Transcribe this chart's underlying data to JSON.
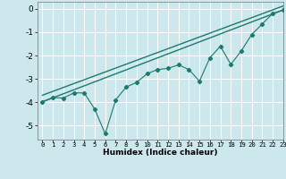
{
  "xlabel": "Humidex (Indice chaleur)",
  "ylabel": "",
  "bg_color": "#cce8ec",
  "grid_color": "#ffffff",
  "line_color": "#1a7a6e",
  "xlim": [
    -0.5,
    23
  ],
  "ylim": [
    -5.6,
    0.3
  ],
  "yticks": [
    0,
    -1,
    -2,
    -3,
    -4,
    -5
  ],
  "xticks": [
    0,
    1,
    2,
    3,
    4,
    5,
    6,
    7,
    8,
    9,
    10,
    11,
    12,
    13,
    14,
    15,
    16,
    17,
    18,
    19,
    20,
    21,
    22,
    23
  ],
  "line1_x": [
    0,
    1,
    2,
    3,
    4,
    5,
    6,
    7,
    8,
    9,
    10,
    11,
    12,
    13,
    14,
    15,
    16,
    17,
    18,
    19,
    20,
    21,
    22,
    23
  ],
  "line1_y": [
    -3.98,
    -3.8,
    -3.82,
    -3.6,
    -3.6,
    -4.3,
    -5.35,
    -3.9,
    -3.35,
    -3.15,
    -2.78,
    -2.6,
    -2.55,
    -2.4,
    -2.6,
    -3.1,
    -2.1,
    -1.6,
    -2.38,
    -1.8,
    -1.1,
    -0.65,
    -0.2,
    -0.05
  ],
  "line2_x": [
    0,
    23
  ],
  "line2_y": [
    -3.98,
    -0.05
  ],
  "line3_x": [
    0,
    23
  ],
  "line3_y": [
    -3.7,
    0.12
  ]
}
